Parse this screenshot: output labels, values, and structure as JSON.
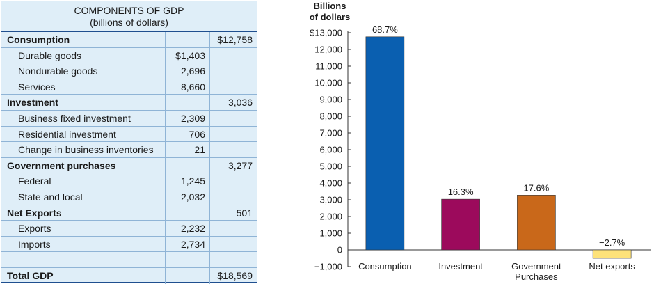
{
  "table": {
    "title": "COMPONENTS OF GDP",
    "subtitle": "(billions of dollars)",
    "rows": [
      {
        "type": "cat",
        "label": "Consumption",
        "sub": "",
        "total": "$12,758"
      },
      {
        "type": "item",
        "label": "Durable goods",
        "sub": "$1,403",
        "total": ""
      },
      {
        "type": "item",
        "label": "Nondurable goods",
        "sub": "2,696",
        "total": ""
      },
      {
        "type": "item",
        "label": "Services",
        "sub": "8,660",
        "total": ""
      },
      {
        "type": "cat",
        "label": "Investment",
        "sub": "",
        "total": "3,036"
      },
      {
        "type": "item",
        "label": "Business fixed investment",
        "sub": "2,309",
        "total": ""
      },
      {
        "type": "item",
        "label": "Residential investment",
        "sub": "706",
        "total": ""
      },
      {
        "type": "item",
        "label": "Change in business inventories",
        "sub": "21",
        "total": ""
      },
      {
        "type": "cat",
        "label": "Government purchases",
        "sub": "",
        "total": "3,277"
      },
      {
        "type": "item",
        "label": "Federal",
        "sub": "1,245",
        "total": ""
      },
      {
        "type": "item",
        "label": "State and local",
        "sub": "2,032",
        "total": ""
      },
      {
        "type": "cat",
        "label": "Net Exports",
        "sub": "",
        "total": "–501"
      },
      {
        "type": "item",
        "label": "Exports",
        "sub": "2,232",
        "total": ""
      },
      {
        "type": "item",
        "label": "Imports",
        "sub": "2,734",
        "total": ""
      },
      {
        "type": "blank",
        "label": "",
        "sub": "",
        "total": ""
      },
      {
        "type": "cat",
        "label": "Total GDP",
        "sub": "",
        "total": "$18,569"
      }
    ]
  },
  "chart_data": {
    "type": "bar",
    "ylabel": [
      "Billions",
      "of dollars"
    ],
    "ylim": [
      -1000,
      13000
    ],
    "ytick_values": [
      -1000,
      0,
      1000,
      2000,
      3000,
      4000,
      5000,
      6000,
      7000,
      8000,
      9000,
      10000,
      11000,
      12000,
      13000
    ],
    "ytick_labels": [
      "−1,000",
      "0",
      "1,000",
      "2,000",
      "3,000",
      "4,000",
      "5,000",
      "6,000",
      "7,000",
      "8,000",
      "9,000",
      "10,000",
      "11,000",
      "12,000",
      "$13,000"
    ],
    "categories": [
      [
        "Consumption"
      ],
      [
        "Investment"
      ],
      [
        "Government",
        "Purchases"
      ],
      [
        "Net exports"
      ]
    ],
    "values": [
      12758,
      3036,
      3277,
      -501
    ],
    "data_labels": [
      "68.7%",
      "16.3%",
      "17.6%",
      "−2.7%"
    ],
    "colors": [
      "#0a5fb0",
      "#9c0a5c",
      "#c9681a",
      "#fde27a"
    ],
    "grid": false
  }
}
